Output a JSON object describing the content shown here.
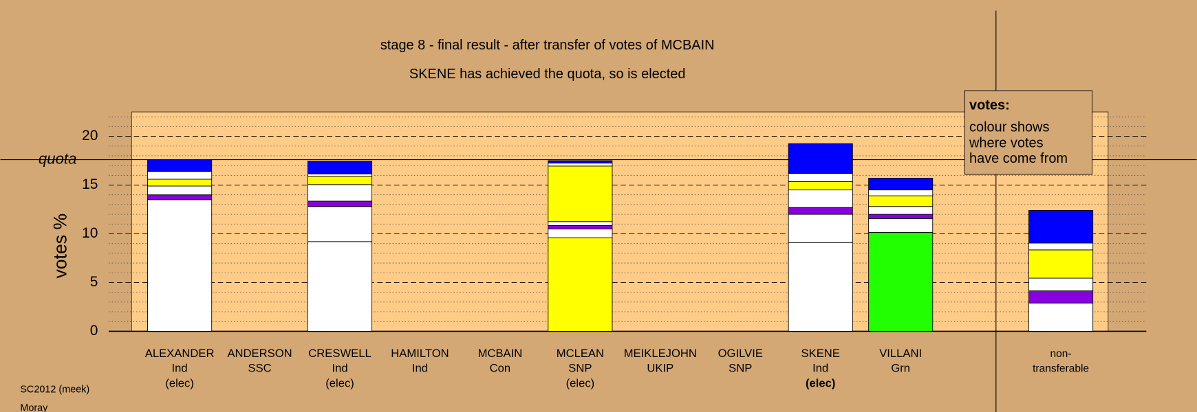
{
  "chart_data": {
    "type": "stacked-bar",
    "title": "stage 8 - final result - after transfer of votes of MCBAIN",
    "subtitle": "SKENE has achieved the quota, so is elected",
    "y_label": "votes %",
    "quota_label": "quota",
    "quota": 17.6,
    "ylim": [
      0,
      22.5
    ],
    "yticks": [
      0,
      5,
      10,
      15,
      20
    ],
    "minor_yticks": [
      1,
      2,
      3,
      4,
      6,
      7,
      8,
      9,
      11,
      12,
      13,
      14,
      16,
      17,
      18,
      19,
      21,
      22
    ],
    "legend": {
      "title": "votes:",
      "lines": [
        "colour shows",
        "where votes",
        "have come from"
      ]
    },
    "footer": [
      "SC2012 (meek)",
      "Moray"
    ],
    "bars": [
      {
        "lines": [
          "ALEXANDER",
          "Ind",
          "(elec)"
        ],
        "segments": [
          {
            "value": 13.5,
            "color": "#ffffff"
          },
          {
            "value": 0.5,
            "color": "#8800dd"
          },
          {
            "value": 0.9,
            "color": "#ffffff"
          },
          {
            "value": 0.7,
            "color": "#ffff00"
          },
          {
            "value": 0.8,
            "color": "#ffffff"
          },
          {
            "value": 1.2,
            "color": "#0000ff"
          }
        ]
      },
      {
        "lines": [
          "ANDERSON",
          "SSC"
        ],
        "segments": []
      },
      {
        "lines": [
          "CRESWELL",
          "Ind",
          "(elec)"
        ],
        "segments": [
          {
            "value": 9.2,
            "color": "#ffffff"
          },
          {
            "value": 3.6,
            "color": "#ffffff"
          },
          {
            "value": 0.55,
            "color": "#8800dd"
          },
          {
            "value": 1.7,
            "color": "#ffffff"
          },
          {
            "value": 0.85,
            "color": "#ffff00"
          },
          {
            "value": 0.25,
            "color": "#ffffff"
          },
          {
            "value": 1.3,
            "color": "#0000ff"
          }
        ]
      },
      {
        "lines": [
          "HAMILTON",
          "Ind"
        ],
        "segments": []
      },
      {
        "lines": [
          "MCBAIN",
          "Con"
        ],
        "segments": []
      },
      {
        "lines": [
          "MCLEAN",
          "SNP",
          "(elec)"
        ],
        "segments": [
          {
            "value": 9.6,
            "color": "#ffff00"
          },
          {
            "value": 0.9,
            "color": "#ffffff"
          },
          {
            "value": 0.35,
            "color": "#8800dd"
          },
          {
            "value": 0.4,
            "color": "#ffffff"
          },
          {
            "value": 5.7,
            "color": "#ffff00"
          },
          {
            "value": 0.3,
            "color": "#ffffff"
          },
          {
            "value": 0.25,
            "color": "#0000ff"
          }
        ]
      },
      {
        "lines": [
          "MEIKLEJOHN",
          "UKIP"
        ],
        "segments": []
      },
      {
        "lines": [
          "OGILVIE",
          "SNP"
        ],
        "segments": []
      },
      {
        "lines": [
          "SKENE",
          "Ind",
          "(elec)"
        ],
        "bold": true,
        "segments": [
          {
            "value": 9.1,
            "color": "#ffffff"
          },
          {
            "value": 2.9,
            "color": "#ffffff"
          },
          {
            "value": 0.7,
            "color": "#8800dd"
          },
          {
            "value": 1.8,
            "color": "#ffffff"
          },
          {
            "value": 0.85,
            "color": "#ffff00"
          },
          {
            "value": 0.85,
            "color": "#ffffff"
          },
          {
            "value": 3.05,
            "color": "#0000ff"
          }
        ]
      },
      {
        "lines": [
          "VILLANI",
          "Grn"
        ],
        "segments": [
          {
            "value": 10.15,
            "color": "#22ff00"
          },
          {
            "value": 1.4,
            "color": "#ffffff"
          },
          {
            "value": 0.45,
            "color": "#8800dd"
          },
          {
            "value": 0.8,
            "color": "#ffffff"
          },
          {
            "value": 1.1,
            "color": "#ffff00"
          },
          {
            "value": 0.6,
            "color": "#ffffff"
          },
          {
            "value": 1.2,
            "color": "#0000ff"
          }
        ]
      },
      {
        "lines": [
          "non-",
          "transferable"
        ],
        "separate": true,
        "segments": [
          {
            "value": 2.9,
            "color": "#ffffff"
          },
          {
            "value": 1.25,
            "color": "#8800dd"
          },
          {
            "value": 1.3,
            "color": "#ffffff"
          },
          {
            "value": 2.9,
            "color": "#ffff00"
          },
          {
            "value": 0.7,
            "color": "#ffffff"
          },
          {
            "value": 3.35,
            "color": "#0000ff"
          }
        ]
      }
    ]
  }
}
